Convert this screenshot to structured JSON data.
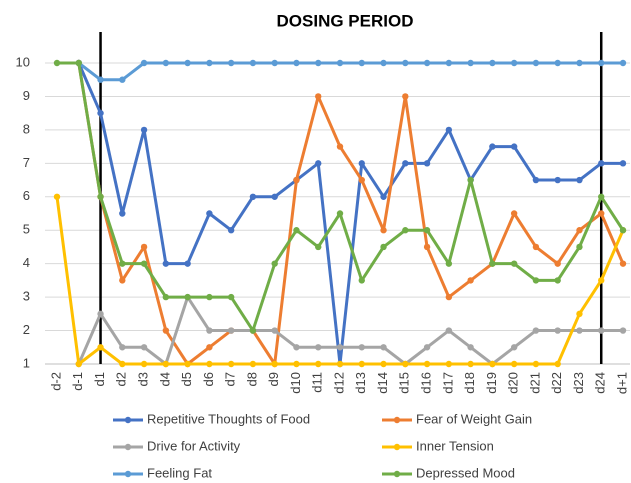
{
  "chart_data": {
    "type": "line",
    "title": "DOSING PERIOD",
    "categories": [
      "d-2",
      "d-1",
      "d1",
      "d2",
      "d3",
      "d4",
      "d5",
      "d6",
      "d7",
      "d8",
      "d9",
      "d10",
      "d11",
      "d12",
      "d13",
      "d14",
      "d15",
      "d16",
      "d17",
      "d18",
      "d19",
      "d20",
      "d21",
      "d22",
      "d23",
      "d24",
      "d+1"
    ],
    "ylim": [
      1,
      10
    ],
    "yticks": [
      1,
      2,
      3,
      4,
      5,
      6,
      7,
      8,
      9,
      10
    ],
    "grid": true,
    "legend": "bottom",
    "vlines": [
      "d1",
      "d24"
    ],
    "series": [
      {
        "name": "Repetitive Thoughts of Food",
        "color": "#4472c4",
        "values": [
          null,
          10,
          8.5,
          5.5,
          8,
          4,
          4,
          5.5,
          5,
          6,
          6,
          6.5,
          7,
          1,
          7,
          6,
          7,
          7,
          8,
          6.5,
          7.5,
          7.5,
          6.5,
          6.5,
          6.5,
          7,
          7
        ]
      },
      {
        "name": "Fear of Weight Gain",
        "color": "#ed7d31",
        "values": [
          null,
          10,
          6,
          3.5,
          4.5,
          2,
          1,
          1.5,
          2,
          2,
          1,
          6.5,
          9,
          7.5,
          6.5,
          5,
          9,
          4.5,
          3,
          3.5,
          4,
          5.5,
          4.5,
          4,
          5,
          5.5,
          4
        ]
      },
      {
        "name": "Drive for Activity",
        "color": "#a5a5a5",
        "values": [
          null,
          1,
          2.5,
          1.5,
          1.5,
          1,
          3,
          2,
          2,
          2,
          2,
          1.5,
          1.5,
          1.5,
          1.5,
          1.5,
          1,
          1.5,
          2,
          1.5,
          1,
          1.5,
          2,
          2,
          2,
          2,
          2
        ]
      },
      {
        "name": "Inner Tension",
        "color": "#ffc000",
        "values": [
          6,
          1,
          1.5,
          1,
          1,
          1,
          1,
          1,
          1,
          1,
          1,
          1,
          1,
          1,
          1,
          1,
          1,
          1,
          1,
          1,
          1,
          1,
          1,
          1,
          2.5,
          3.5,
          5
        ]
      },
      {
        "name": "Feeling Fat",
        "color": "#5b9bd5",
        "values": [
          null,
          10,
          9.5,
          9.5,
          10,
          10,
          10,
          10,
          10,
          10,
          10,
          10,
          10,
          10,
          10,
          10,
          10,
          10,
          10,
          10,
          10,
          10,
          10,
          10,
          10,
          10,
          10
        ]
      },
      {
        "name": "Depressed Mood",
        "color": "#70ad47",
        "values": [
          10,
          10,
          6,
          4,
          4,
          3,
          3,
          3,
          3,
          2,
          4,
          5,
          4.5,
          5.5,
          3.5,
          4.5,
          5,
          5,
          4,
          6.5,
          4,
          4,
          3.5,
          3.5,
          4.5,
          6,
          5
        ]
      }
    ]
  }
}
